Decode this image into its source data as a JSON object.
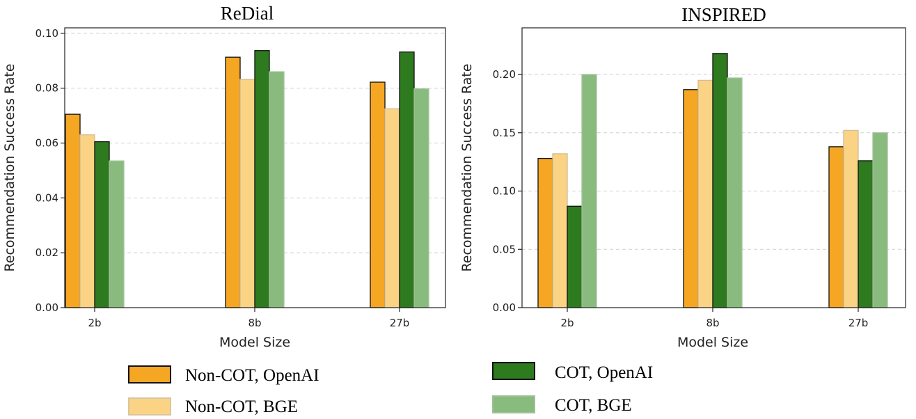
{
  "chart_data": [
    {
      "type": "bar",
      "title": "ReDial",
      "xlabel": "Model Size",
      "ylabel": "Recommendation Success Rate",
      "categories": [
        "2b",
        "8b",
        "27b"
      ],
      "ylim": [
        0,
        0.102
      ],
      "yticks": [
        "0.00",
        "0.02",
        "0.04",
        "0.06",
        "0.08",
        "0.10"
      ],
      "grid": true,
      "series": [
        {
          "name": "Non-COT, OpenAI",
          "values": [
            0.0705,
            0.0913,
            0.0822
          ]
        },
        {
          "name": "Non-COT, BGE",
          "values": [
            0.063,
            0.0832,
            0.0725
          ]
        },
        {
          "name": "COT, OpenAI",
          "values": [
            0.0605,
            0.0937,
            0.0932
          ]
        },
        {
          "name": "COT, BGE",
          "values": [
            0.0535,
            0.086,
            0.0798
          ]
        }
      ]
    },
    {
      "type": "bar",
      "title": "INSPIRED",
      "xlabel": "Model Size",
      "ylabel": "Recommendation Success Rate",
      "categories": [
        "2b",
        "8b",
        "27b"
      ],
      "ylim": [
        0,
        0.24
      ],
      "yticks": [
        "0.00",
        "0.05",
        "0.10",
        "0.15",
        "0.20"
      ],
      "grid": true,
      "series": [
        {
          "name": "Non-COT, OpenAI",
          "values": [
            0.128,
            0.187,
            0.138
          ]
        },
        {
          "name": "Non-COT, BGE",
          "values": [
            0.132,
            0.195,
            0.152
          ]
        },
        {
          "name": "COT, OpenAI",
          "values": [
            0.087,
            0.218,
            0.126
          ]
        },
        {
          "name": "COT, BGE",
          "values": [
            0.2,
            0.197,
            0.15
          ]
        }
      ]
    }
  ],
  "legend": {
    "placement": "bottom",
    "entries": [
      "Non-COT, OpenAI",
      "Non-COT, BGE",
      "COT, OpenAI",
      "COT, BGE"
    ]
  },
  "colors": {
    "Non-COT, OpenAI": "#f5a623",
    "Non-COT, BGE": "#fbd384",
    "COT, OpenAI": "#2e7a1e",
    "COT, BGE": "#88bb7d"
  }
}
